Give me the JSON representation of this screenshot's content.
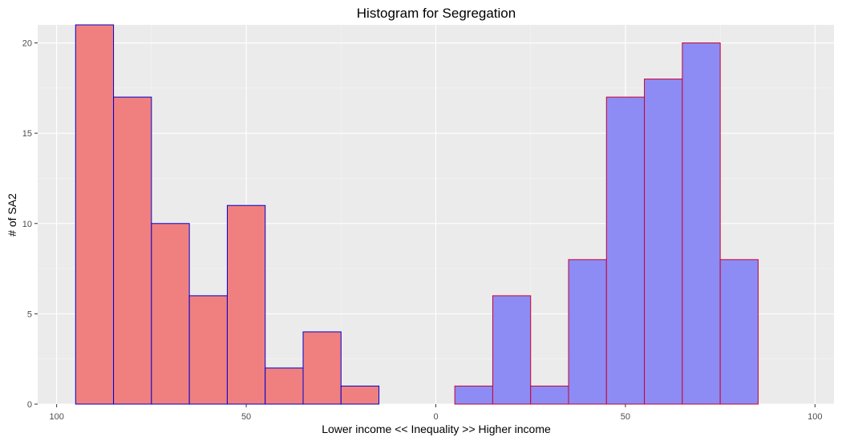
{
  "chart_data": {
    "type": "bar",
    "title": "Histogram for Segregation",
    "xlabel": "Lower income << Inequality >> Higher income",
    "ylabel": "# of SA2",
    "xlim": [
      -105,
      105
    ],
    "ylim": [
      0,
      21
    ],
    "x_ticks": [
      -100,
      -50,
      0,
      50,
      100
    ],
    "x_tick_labels": [
      "100",
      "50",
      "0",
      "50",
      "100"
    ],
    "y_ticks": [
      0,
      5,
      10,
      15,
      20
    ],
    "y_tick_labels": [
      "0",
      "5",
      "10",
      "15",
      "20"
    ],
    "bin_width": 10,
    "grid": true,
    "background": "#ebebeb",
    "series": [
      {
        "name": "Lower income",
        "fill": "#f08080",
        "stroke": "#0000cc",
        "bin_centers": [
          -90,
          -80,
          -70,
          -60,
          -50,
          -40,
          -30,
          -20,
          -10,
          0
        ],
        "counts": [
          21,
          17,
          10,
          6,
          11,
          2,
          4,
          1,
          0,
          0
        ]
      },
      {
        "name": "Higher income",
        "fill": "#8c8cf4",
        "stroke": "#cc0033",
        "bin_centers": [
          0,
          10,
          20,
          30,
          40,
          50,
          60,
          70,
          80,
          90
        ],
        "counts": [
          0,
          1,
          6,
          1,
          8,
          17,
          18,
          20,
          8,
          0
        ]
      }
    ]
  }
}
